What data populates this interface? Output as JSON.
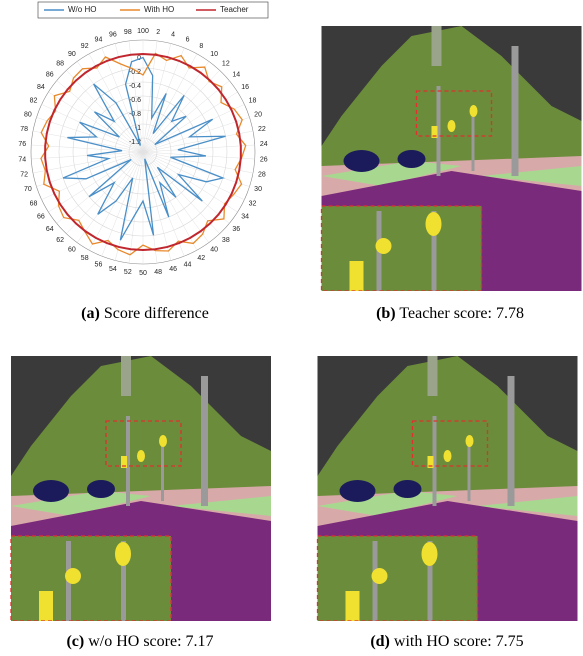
{
  "chart_data": {
    "type": "radar",
    "categories": [
      "2",
      "4",
      "6",
      "8",
      "10",
      "12",
      "14",
      "16",
      "18",
      "20",
      "22",
      "24",
      "26",
      "28",
      "30",
      "32",
      "34",
      "36",
      "38",
      "40",
      "42",
      "44",
      "46",
      "48",
      "50",
      "52",
      "54",
      "56",
      "58",
      "60",
      "62",
      "64",
      "66",
      "68",
      "70",
      "72",
      "74",
      "76",
      "78",
      "80",
      "82",
      "84",
      "86",
      "88",
      "90",
      "92",
      "94",
      "96",
      "98",
      "100"
    ],
    "rlim": [
      -1.4,
      0.2
    ],
    "yticks": [
      0,
      -0.2,
      -0.4,
      -0.6,
      -0.8,
      -1,
      -1.2
    ],
    "grid": true,
    "series": [
      {
        "name": "W/o HO",
        "color": "#4a8fc8",
        "values": [
          -0.3,
          -0.9,
          -0.5,
          -1.1,
          -0.4,
          -0.8,
          -0.6,
          -1.2,
          -0.3,
          -0.7,
          -0.2,
          -0.9,
          -0.5,
          -1.0,
          -0.2,
          -0.4,
          -0.8,
          -0.3,
          -1.1,
          -0.6,
          -0.9,
          -0.4,
          -1.3,
          -0.2,
          -0.7,
          -0.5,
          -0.1,
          -1.0,
          -0.6,
          -0.3,
          -0.8,
          -0.4,
          -1.2,
          -0.5,
          -0.2,
          -0.9,
          -0.6,
          -1.1,
          -0.3,
          -0.7,
          -0.4,
          -1.0,
          -0.5,
          -0.8,
          -0.2,
          -0.6,
          -1.3,
          -0.4,
          -0.1,
          -0.05
        ]
      },
      {
        "name": "With HO",
        "color": "#e8892b",
        "values": [
          0.02,
          -0.05,
          0.08,
          -0.03,
          0.1,
          -0.02,
          0.06,
          -0.08,
          0.04,
          0.09,
          -0.04,
          0.07,
          0.01,
          -0.06,
          0.08,
          0.03,
          -0.02,
          0.1,
          -0.05,
          0.05,
          0.09,
          -0.03,
          0.06,
          0.02,
          -0.07,
          0.08,
          0.04,
          -0.04,
          0.1,
          0.01,
          -0.06,
          0.07,
          0.03,
          -0.08,
          0.09,
          0.02,
          0.06,
          -0.05,
          0.08,
          0.04,
          -0.02,
          0.1,
          -0.04,
          0.05,
          0.07,
          -0.03,
          0.06,
          -0.1,
          -0.2,
          -0.3
        ]
      },
      {
        "name": "Teacher",
        "color": "#c0262d",
        "values": [
          0,
          0,
          0,
          0,
          0,
          0,
          0,
          0,
          0,
          0,
          0,
          0,
          0,
          0,
          0,
          0,
          0,
          0,
          0,
          0,
          0,
          0,
          0,
          0,
          0,
          0,
          0,
          0,
          0,
          0,
          0,
          0,
          0,
          0,
          0,
          0,
          0,
          0,
          0,
          0,
          0,
          0,
          0,
          0,
          0,
          0,
          0,
          0,
          0,
          0
        ]
      }
    ]
  },
  "captions": [
    {
      "label": "(a)",
      "text": "Score difference"
    },
    {
      "label": "(b)",
      "text": "Teacher score: 7.78"
    },
    {
      "label": "(c)",
      "text": "w/o HO score: 7.17"
    },
    {
      "label": "(d)",
      "text": "with HO score: 7.75"
    }
  ]
}
